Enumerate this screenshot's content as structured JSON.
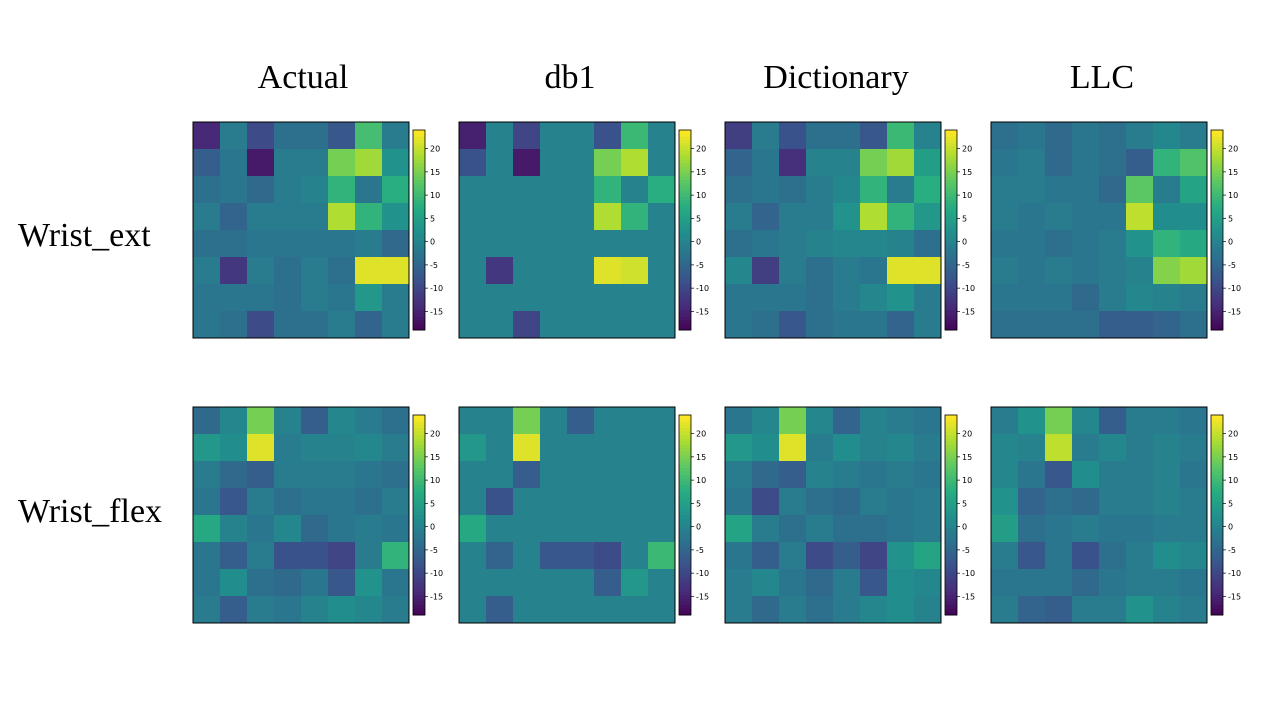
{
  "chart_data": {
    "type": "heatmap",
    "columns": [
      "Actual",
      "db1",
      "Dictionary",
      "LLC"
    ],
    "rows": [
      "Wrist_ext",
      "Wrist_flex"
    ],
    "colormap": "viridis",
    "color_range": [
      -19,
      24
    ],
    "colorbar_ticks": [
      20,
      15,
      10,
      5,
      0,
      -5,
      -10,
      -15
    ],
    "grid": false,
    "panels": [
      {
        "row": "Wrist_ext",
        "column": "Actual",
        "values": [
          [
            -14,
            -1,
            -9,
            -3,
            -3,
            -7,
            11,
            -1
          ],
          [
            -6,
            -2,
            -16,
            -1,
            -1,
            15,
            18,
            3
          ],
          [
            -3,
            -2,
            -4,
            -1,
            0,
            9,
            -2,
            8
          ],
          [
            -1,
            -5,
            -1,
            -1,
            -1,
            19,
            9,
            3
          ],
          [
            -3,
            -3,
            -2,
            -2,
            -2,
            -2,
            -1,
            -4
          ],
          [
            -1,
            -12,
            -1,
            -3,
            -1,
            -3,
            22,
            22
          ],
          [
            -2,
            -2,
            -2,
            -3,
            -1,
            -2,
            4,
            -1
          ],
          [
            -2,
            -3,
            -9,
            -3,
            -3,
            -1,
            -5,
            -1
          ]
        ]
      },
      {
        "row": "Wrist_ext",
        "column": "db1",
        "values": [
          [
            -15,
            0,
            -10,
            0,
            0,
            -8,
            10,
            0
          ],
          [
            -8,
            0,
            -16,
            0,
            0,
            15,
            19,
            0
          ],
          [
            0,
            0,
            0,
            0,
            0,
            9,
            0,
            8
          ],
          [
            0,
            0,
            0,
            0,
            0,
            19,
            9,
            0
          ],
          [
            0,
            0,
            0,
            0,
            0,
            0,
            0,
            0
          ],
          [
            0,
            -12,
            0,
            0,
            0,
            22,
            21,
            0
          ],
          [
            0,
            0,
            0,
            0,
            0,
            0,
            0,
            0
          ],
          [
            0,
            0,
            -10,
            0,
            0,
            0,
            0,
            0
          ]
        ]
      },
      {
        "row": "Wrist_ext",
        "column": "Dictionary",
        "values": [
          [
            -11,
            -1,
            -8,
            -3,
            -3,
            -7,
            10,
            0
          ],
          [
            -5,
            -2,
            -13,
            0,
            0,
            15,
            18,
            5
          ],
          [
            -3,
            -2,
            -3,
            -1,
            1,
            9,
            -1,
            8
          ],
          [
            -1,
            -5,
            -1,
            -1,
            3,
            19,
            9,
            4
          ],
          [
            -3,
            -2,
            -1,
            0,
            1,
            1,
            0,
            -3
          ],
          [
            1,
            -11,
            -1,
            -3,
            -1,
            -2,
            22,
            22
          ],
          [
            -2,
            -2,
            -2,
            -3,
            -1,
            1,
            3,
            -1
          ],
          [
            -2,
            -3,
            -7,
            -3,
            -2,
            -2,
            -5,
            -1
          ]
        ]
      },
      {
        "row": "Wrist_ext",
        "column": "LLC",
        "values": [
          [
            -3,
            -2,
            -4,
            -2,
            -3,
            -1,
            1,
            -1
          ],
          [
            -2,
            -1,
            -4,
            -2,
            -3,
            -6,
            9,
            12
          ],
          [
            -1,
            -1,
            -2,
            -2,
            -4,
            13,
            -1,
            6
          ],
          [
            -1,
            -2,
            -1,
            -2,
            -2,
            20,
            2,
            2
          ],
          [
            -2,
            -2,
            -3,
            -2,
            -1,
            3,
            9,
            7
          ],
          [
            -1,
            -2,
            -1,
            -2,
            -1,
            0,
            16,
            18
          ],
          [
            -2,
            -2,
            -2,
            -4,
            -1,
            1,
            0,
            -1
          ],
          [
            -3,
            -3,
            -3,
            -3,
            -6,
            -6,
            -5,
            -3
          ]
        ]
      },
      {
        "row": "Wrist_flex",
        "column": "Actual",
        "values": [
          [
            -4,
            1,
            15,
            0,
            -6,
            1,
            -1,
            -3
          ],
          [
            4,
            2,
            22,
            -1,
            0,
            0,
            1,
            -1
          ],
          [
            -1,
            -4,
            -6,
            -1,
            -1,
            -1,
            -2,
            -3
          ],
          [
            -2,
            -7,
            -1,
            -3,
            -2,
            -2,
            -3,
            -1
          ],
          [
            7,
            0,
            -2,
            1,
            -4,
            -2,
            -1,
            -2
          ],
          [
            -2,
            -6,
            -1,
            -8,
            -8,
            -10,
            -1,
            9
          ],
          [
            -2,
            2,
            -3,
            -4,
            -2,
            -7,
            3,
            -2
          ],
          [
            -1,
            -6,
            -1,
            -2,
            0,
            2,
            1,
            -1
          ]
        ]
      },
      {
        "row": "Wrist_flex",
        "column": "db1",
        "values": [
          [
            0,
            0,
            15,
            0,
            -6,
            0,
            0,
            0
          ],
          [
            4,
            0,
            22,
            0,
            0,
            0,
            0,
            0
          ],
          [
            0,
            0,
            -6,
            0,
            0,
            0,
            0,
            0
          ],
          [
            0,
            -8,
            0,
            0,
            0,
            0,
            0,
            0
          ],
          [
            7,
            0,
            0,
            0,
            0,
            0,
            0,
            0
          ],
          [
            0,
            -5,
            0,
            -7,
            -7,
            -9,
            0,
            10
          ],
          [
            0,
            0,
            0,
            0,
            0,
            -6,
            4,
            0
          ],
          [
            0,
            -6,
            0,
            0,
            0,
            0,
            0,
            0
          ]
        ]
      },
      {
        "row": "Wrist_flex",
        "column": "Dictionary",
        "values": [
          [
            -2,
            1,
            15,
            1,
            -5,
            0,
            -1,
            -2
          ],
          [
            4,
            2,
            22,
            -1,
            2,
            0,
            1,
            -1
          ],
          [
            -1,
            -4,
            -6,
            0,
            -1,
            -2,
            -1,
            -2
          ],
          [
            -2,
            -9,
            -1,
            -3,
            -4,
            -1,
            -2,
            -1
          ],
          [
            6,
            -1,
            -3,
            -1,
            -3,
            -3,
            -2,
            -1
          ],
          [
            -2,
            -6,
            -1,
            -9,
            -6,
            -10,
            3,
            6
          ],
          [
            -1,
            1,
            -2,
            -4,
            -1,
            -7,
            2,
            1
          ],
          [
            -1,
            -4,
            -1,
            -3,
            -1,
            1,
            2,
            0
          ]
        ]
      },
      {
        "row": "Wrist_flex",
        "column": "LLC",
        "values": [
          [
            -1,
            3,
            15,
            1,
            -6,
            -1,
            -1,
            -2
          ],
          [
            1,
            0,
            20,
            -1,
            1,
            -1,
            0,
            -1
          ],
          [
            1,
            -2,
            -7,
            2,
            -1,
            -1,
            0,
            -2
          ],
          [
            3,
            -5,
            -3,
            -4,
            -1,
            -1,
            0,
            -1
          ],
          [
            5,
            -3,
            -2,
            -1,
            -2,
            -2,
            -1,
            -1
          ],
          [
            -1,
            -7,
            -2,
            -8,
            -3,
            -1,
            2,
            1
          ],
          [
            -2,
            -2,
            -2,
            -4,
            -2,
            -1,
            -1,
            -2
          ],
          [
            -1,
            -5,
            -6,
            -1,
            -1,
            3,
            0,
            -1
          ]
        ]
      }
    ]
  }
}
